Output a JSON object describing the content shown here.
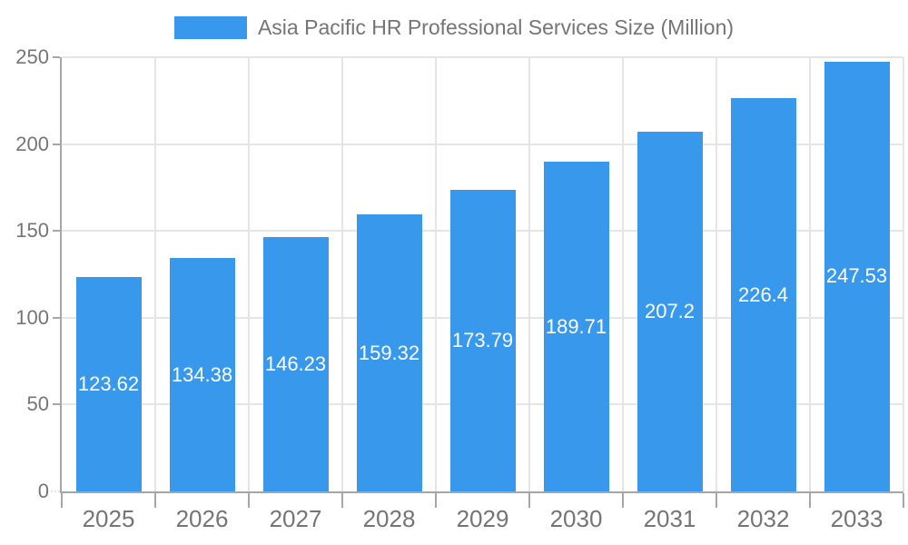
{
  "chart_data": {
    "type": "bar",
    "title": "Asia Pacific HR Professional Services Size (Million)",
    "categories": [
      "2025",
      "2026",
      "2027",
      "2028",
      "2029",
      "2030",
      "2031",
      "2032",
      "2033"
    ],
    "values": [
      123.62,
      134.38,
      146.23,
      159.32,
      173.79,
      189.71,
      207.2,
      226.4,
      247.53
    ],
    "xlabel": "",
    "ylabel": "",
    "ylim": [
      0,
      250
    ],
    "yticks": [
      0,
      50,
      100,
      150,
      200,
      250
    ],
    "grid": true,
    "legend_position": "top",
    "bar_color": "#3899EC",
    "value_label_color": "#FFFFFF",
    "axis_color": "#A6A6A6",
    "grid_color": "#E5E5E5",
    "text_color": "#757575"
  }
}
